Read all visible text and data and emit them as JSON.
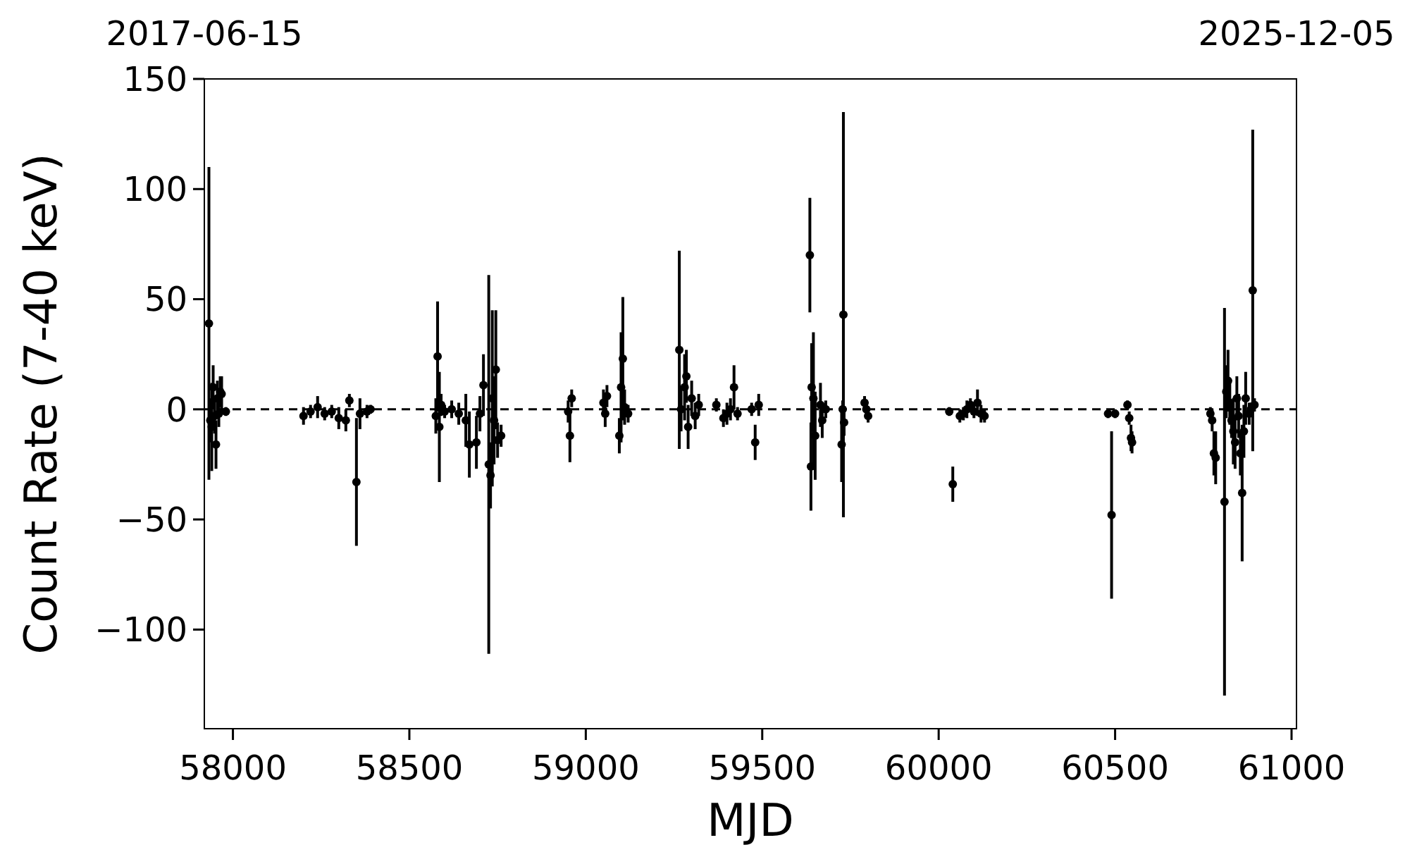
{
  "chart_data": {
    "type": "scatter",
    "xlabel": "MJD",
    "ylabel": "Count Rate (7-40 keV)",
    "xlim": [
      57919,
      61014
    ],
    "ylim": [
      -145,
      150
    ],
    "xticks": [
      58000,
      58500,
      59000,
      59500,
      60000,
      60500,
      61000
    ],
    "yticks": [
      {
        "value": -100,
        "label": "−100"
      },
      {
        "value": -50,
        "label": "−50"
      },
      0,
      50,
      100,
      150
    ],
    "x2lim": [
      "2017-06-15",
      "2025-12-05"
    ],
    "x2ticks": [
      "2017-06-15",
      "2025-12-05"
    ],
    "marker": "circle",
    "ref_lines": [
      {
        "axis": "y",
        "value": 0,
        "color": "#000000",
        "line_style": "dashed"
      }
    ],
    "series": [
      {
        "color": "#000000",
        "x": [
          57932,
          57936,
          57940,
          57944,
          57948,
          57952,
          57956,
          57960,
          57964,
          57968,
          57980,
          58200,
          58220,
          58240,
          58260,
          58280,
          58300,
          58320,
          58330,
          58350,
          58360,
          58380,
          58390,
          58575,
          58580,
          58585,
          58590,
          58600,
          58620,
          58640,
          58660,
          58670,
          58690,
          58700,
          58710,
          58725,
          58730,
          58735,
          58740,
          58745,
          58750,
          58760,
          58950,
          58955,
          58960,
          59050,
          59055,
          59060,
          59095,
          59100,
          59105,
          59110,
          59120,
          59265,
          59270,
          59280,
          59285,
          59290,
          59300,
          59310,
          59320,
          59370,
          59390,
          59400,
          59410,
          59420,
          59430,
          59470,
          59480,
          59490,
          59635,
          59638,
          59640,
          59645,
          59650,
          59665,
          59670,
          59680,
          59725,
          59728,
          59730,
          59732,
          59790,
          59795,
          59800,
          60030,
          60040,
          60060,
          60070,
          60080,
          60090,
          60100,
          60110,
          60120,
          60130,
          60480,
          60490,
          60500,
          60535,
          60540,
          60545,
          60548,
          60770,
          60775,
          60780,
          60785,
          60810,
          60815,
          60820,
          60825,
          60830,
          60835,
          60840,
          60845,
          60850,
          60855,
          60860,
          60865,
          60870,
          60880,
          60885,
          60890,
          60895
        ],
        "values": [
          39,
          -5,
          -8,
          10,
          -3,
          -16,
          5,
          -2,
          8,
          7,
          -1,
          -3,
          -1,
          1,
          -2,
          -1,
          -4,
          -5,
          4,
          -33,
          -2,
          -1,
          0,
          -3,
          24,
          -8,
          2,
          -1,
          0,
          -2,
          -5,
          -16,
          -15,
          -2,
          11,
          -25,
          -30,
          5,
          -5,
          18,
          -14,
          -12,
          -1,
          -12,
          5,
          3,
          -2,
          6,
          -12,
          10,
          23,
          1,
          -2,
          27,
          0,
          10,
          15,
          -8,
          5,
          -3,
          2,
          2,
          -4,
          -2,
          0,
          10,
          -2,
          0,
          -15,
          2,
          70,
          -26,
          10,
          5,
          -12,
          2,
          -5,
          0,
          -16,
          0,
          43,
          -6,
          3,
          0,
          -3,
          -1,
          -34,
          -3,
          -2,
          0,
          2,
          -1,
          3,
          -2,
          -3,
          -2,
          -48,
          -2,
          2,
          -4,
          -13,
          -15,
          -2,
          -5,
          -20,
          -22,
          -42,
          8,
          13,
          3,
          -5,
          -10,
          -15,
          5,
          -3,
          -20,
          -38,
          -10,
          5,
          -2,
          0,
          54,
          2
        ],
        "errors": [
          71,
          10,
          20,
          10,
          8,
          11,
          8,
          6,
          7,
          8,
          2,
          4,
          3,
          5,
          3,
          3,
          5,
          5,
          3,
          29,
          7,
          3,
          2,
          8,
          25,
          25,
          5,
          3,
          4,
          5,
          12,
          15,
          12,
          8,
          14,
          86,
          15,
          40,
          20,
          27,
          8,
          5,
          5,
          12,
          4,
          6,
          6,
          5,
          8,
          25,
          28,
          8,
          4,
          45,
          10,
          15,
          12,
          10,
          8,
          6,
          5,
          3,
          4,
          5,
          5,
          10,
          3,
          3,
          8,
          5,
          26,
          20,
          20,
          30,
          20,
          10,
          8,
          4,
          17,
          4,
          92,
          6,
          3,
          3,
          3,
          2,
          8,
          3,
          3,
          4,
          3,
          3,
          6,
          4,
          3,
          2,
          38,
          2,
          2,
          3,
          6,
          5,
          3,
          5,
          10,
          12,
          88,
          12,
          14,
          10,
          8,
          15,
          12,
          10,
          10,
          10,
          31,
          12,
          12,
          5,
          3,
          73,
          3
        ]
      }
    ]
  }
}
